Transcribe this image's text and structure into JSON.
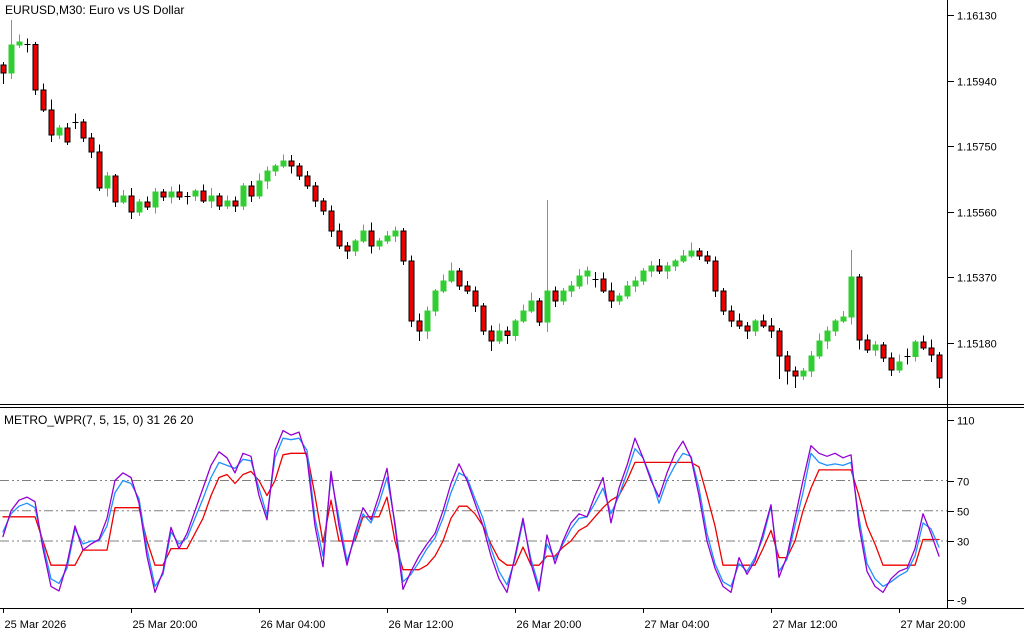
{
  "window": {
    "title_main": "EURUSD,M30:  Euro vs US Dollar",
    "title_indicator": "METRO_WPR(7, 5, 15, 0) 31 26 20"
  },
  "colors": {
    "background": "#FFFFFF",
    "frame": "#000000",
    "text": "#000000",
    "grid": "#808080",
    "bull": "#32CD32",
    "bear": "#EE0000",
    "bear_outline": "#000000",
    "doji": "#000000",
    "wpr_red": "#EE0000",
    "wpr_blue": "#1E90FF",
    "wpr_violet": "#9400D3"
  },
  "price_axis": {
    "labels": [
      "1.16130",
      "1.15940",
      "1.15750",
      "1.15560",
      "1.15370",
      "1.15180"
    ]
  },
  "indicator_axis": {
    "labels": [
      "110",
      "70",
      "50",
      "30",
      "-9"
    ],
    "gridlines": [
      70,
      50,
      30
    ]
  },
  "time_axis": {
    "labels": [
      "25 Mar 2026",
      "25 Mar 20:00",
      "26 Mar 04:00",
      "26 Mar 12:00",
      "26 Mar 20:00",
      "27 Mar 04:00",
      "27 Mar 12:00",
      "27 Mar 20:00"
    ]
  },
  "chart_data": [
    {
      "type": "candlestick",
      "title": "EURUSD,M30: Euro vs US Dollar",
      "symbol": "EURUSD",
      "timeframe": "M30",
      "ylabel": "price",
      "ylim": [
        1.1504,
        1.16175
      ],
      "price_ticks": [
        1.1613,
        1.1594,
        1.1575,
        1.1556,
        1.1537,
        1.1518
      ],
      "time_ticks": [
        "25 Mar 2026",
        "25 Mar 20:00",
        "26 Mar 04:00",
        "26 Mar 12:00",
        "26 Mar 20:00",
        "27 Mar 04:00",
        "27 Mar 12:00",
        "27 Mar 20:00"
      ],
      "candles_ohlc": [
        [
          1.15985,
          1.15994,
          1.1593,
          1.15962
        ],
        [
          1.15962,
          1.16115,
          1.15944,
          1.16043
        ],
        [
          1.16043,
          1.16073,
          1.16034,
          1.16052
        ],
        [
          1.16045,
          1.16062,
          1.16021,
          1.16045
        ],
        [
          1.16045,
          1.16051,
          1.15898,
          1.15913
        ],
        [
          1.15913,
          1.15931,
          1.15849,
          1.15855
        ],
        [
          1.15855,
          1.15885,
          1.15761,
          1.15782
        ],
        [
          1.15782,
          1.15811,
          1.1577,
          1.15802
        ],
        [
          1.15802,
          1.15817,
          1.15753,
          1.15762
        ],
        [
          1.1582,
          1.15845,
          1.158,
          1.1582
        ],
        [
          1.1582,
          1.15829,
          1.15761,
          1.15773
        ],
        [
          1.15773,
          1.15788,
          1.15715,
          1.15733
        ],
        [
          1.15733,
          1.15754,
          1.15619,
          1.15628
        ],
        [
          1.15628,
          1.15675,
          1.15604,
          1.15663
        ],
        [
          1.15663,
          1.15669,
          1.15573,
          1.15588
        ],
        [
          1.15588,
          1.15623,
          1.15582,
          1.15605
        ],
        [
          1.15605,
          1.15629,
          1.15538,
          1.15559
        ],
        [
          1.15559,
          1.15597,
          1.15547,
          1.15588
        ],
        [
          1.15588,
          1.15603,
          1.15564,
          1.15573
        ],
        [
          1.15573,
          1.15629,
          1.15555,
          1.15617
        ],
        [
          1.15617,
          1.15626,
          1.1559,
          1.15602
        ],
        [
          1.15602,
          1.15632,
          1.15584,
          1.15617
        ],
        [
          1.15617,
          1.15638,
          1.15593,
          1.15602
        ],
        [
          1.15605,
          1.15617,
          1.15581,
          1.15605
        ],
        [
          1.15605,
          1.15626,
          1.1559,
          1.1562
        ],
        [
          1.1562,
          1.15638,
          1.15585,
          1.15591
        ],
        [
          1.15591,
          1.15629,
          1.1557,
          1.15605
        ],
        [
          1.15605,
          1.15614,
          1.15564,
          1.15576
        ],
        [
          1.15576,
          1.15606,
          1.15567,
          1.15591
        ],
        [
          1.15591,
          1.15603,
          1.15558,
          1.15576
        ],
        [
          1.15576,
          1.15643,
          1.15564,
          1.15634
        ],
        [
          1.15634,
          1.15649,
          1.15587,
          1.15605
        ],
        [
          1.15605,
          1.1567,
          1.15596,
          1.15649
        ],
        [
          1.15649,
          1.1569,
          1.15625,
          1.15678
        ],
        [
          1.15678,
          1.15698,
          1.15663,
          1.15692
        ],
        [
          1.15692,
          1.15725,
          1.15686,
          1.15707
        ],
        [
          1.15707,
          1.15724,
          1.15671,
          1.15692
        ],
        [
          1.15692,
          1.15701,
          1.15651,
          1.15663
        ],
        [
          1.15663,
          1.15678,
          1.15625,
          1.15634
        ],
        [
          1.15634,
          1.15646,
          1.15573,
          1.15591
        ],
        [
          1.15591,
          1.156,
          1.1555,
          1.15562
        ],
        [
          1.15562,
          1.15577,
          1.15486,
          1.15504
        ],
        [
          1.15504,
          1.15525,
          1.15451,
          1.1546
        ],
        [
          1.1546,
          1.15472,
          1.15422,
          1.15446
        ],
        [
          1.15446,
          1.15481,
          1.15431,
          1.15475
        ],
        [
          1.15475,
          1.15522,
          1.15469,
          1.15504
        ],
        [
          1.15504,
          1.15528,
          1.15439,
          1.1546
        ],
        [
          1.1546,
          1.15484,
          1.15448,
          1.15475
        ],
        [
          1.15475,
          1.15504,
          1.15466,
          1.15489
        ],
        [
          1.15489,
          1.15516,
          1.15471,
          1.15504
        ],
        [
          1.15504,
          1.15513,
          1.15405,
          1.15417
        ],
        [
          1.15417,
          1.15432,
          1.15225,
          1.15243
        ],
        [
          1.15243,
          1.15264,
          1.15185,
          1.15214
        ],
        [
          1.15214,
          1.15284,
          1.1519,
          1.15272
        ],
        [
          1.15272,
          1.15336,
          1.15257,
          1.1533
        ],
        [
          1.1533,
          1.15377,
          1.15324,
          1.15359
        ],
        [
          1.15359,
          1.15412,
          1.15353,
          1.15388
        ],
        [
          1.15388,
          1.15397,
          1.15332,
          1.15344
        ],
        [
          1.15344,
          1.15359,
          1.15321,
          1.1533
        ],
        [
          1.1533,
          1.15342,
          1.15268,
          1.15286
        ],
        [
          1.15286,
          1.15295,
          1.15202,
          1.15214
        ],
        [
          1.15214,
          1.15229,
          1.15156,
          1.15185
        ],
        [
          1.15185,
          1.15235,
          1.15176,
          1.15214
        ],
        [
          1.15214,
          1.15226,
          1.15176,
          1.152
        ],
        [
          1.152,
          1.15249,
          1.15185,
          1.15243
        ],
        [
          1.15243,
          1.1529,
          1.15237,
          1.15272
        ],
        [
          1.15272,
          1.15325,
          1.15266,
          1.15301
        ],
        [
          1.15301,
          1.1531,
          1.15228,
          1.1524
        ],
        [
          1.1524,
          1.15594,
          1.1521,
          1.1533
        ],
        [
          1.1533,
          1.15342,
          1.15283,
          1.15301
        ],
        [
          1.15301,
          1.15339,
          1.15289,
          1.1533
        ],
        [
          1.1533,
          1.15359,
          1.15312,
          1.15344
        ],
        [
          1.15344,
          1.15394,
          1.15335,
          1.15373
        ],
        [
          1.15373,
          1.154,
          1.15349,
          1.15388
        ],
        [
          1.15365,
          1.15385,
          1.1534,
          1.15365
        ],
        [
          1.15365,
          1.15383,
          1.15324,
          1.1533
        ],
        [
          1.1533,
          1.15354,
          1.1528,
          1.15301
        ],
        [
          1.15301,
          1.15324,
          1.15289,
          1.15315
        ],
        [
          1.15315,
          1.15359,
          1.15306,
          1.15344
        ],
        [
          1.15344,
          1.15371,
          1.15326,
          1.15359
        ],
        [
          1.15359,
          1.15397,
          1.15347,
          1.15388
        ],
        [
          1.15388,
          1.15417,
          1.1537,
          1.15402
        ],
        [
          1.15402,
          1.15423,
          1.15379,
          1.15388
        ],
        [
          1.15388,
          1.15414,
          1.15364,
          1.15402
        ],
        [
          1.15402,
          1.15423,
          1.15387,
          1.15417
        ],
        [
          1.15417,
          1.15449,
          1.15411,
          1.15431
        ],
        [
          1.15431,
          1.1547,
          1.15425,
          1.15446
        ],
        [
          1.15446,
          1.15455,
          1.15419,
          1.15431
        ],
        [
          1.15431,
          1.15446,
          1.15408,
          1.15417
        ],
        [
          1.15417,
          1.15429,
          1.15312,
          1.1533
        ],
        [
          1.1533,
          1.15339,
          1.1526,
          1.15272
        ],
        [
          1.15272,
          1.15287,
          1.15225,
          1.15243
        ],
        [
          1.15243,
          1.15264,
          1.15219,
          1.15228
        ],
        [
          1.15228,
          1.1524,
          1.1519,
          1.15214
        ],
        [
          1.15214,
          1.15249,
          1.15199,
          1.15243
        ],
        [
          1.15243,
          1.15261,
          1.15222,
          1.15228
        ],
        [
          1.15228,
          1.15252,
          1.15193,
          1.15214
        ],
        [
          1.15214,
          1.15223,
          1.15075,
          1.15141
        ],
        [
          1.15141,
          1.15156,
          1.15058,
          1.15098
        ],
        [
          1.15098,
          1.1511,
          1.15048,
          1.15083
        ],
        [
          1.15083,
          1.15107,
          1.15071,
          1.15098
        ],
        [
          1.15098,
          1.15156,
          1.1508,
          1.15141
        ],
        [
          1.15141,
          1.15206,
          1.15132,
          1.15185
        ],
        [
          1.15185,
          1.15226,
          1.15161,
          1.15214
        ],
        [
          1.15214,
          1.15249,
          1.15199,
          1.15243
        ],
        [
          1.15243,
          1.15272,
          1.15237,
          1.15254
        ],
        [
          1.15254,
          1.15449,
          1.15233,
          1.1537
        ],
        [
          1.1537,
          1.15379,
          1.1516,
          1.15188
        ],
        [
          1.15188,
          1.15203,
          1.1515,
          1.15159
        ],
        [
          1.15159,
          1.15185,
          1.15141,
          1.15173
        ],
        [
          1.15173,
          1.15182,
          1.15124,
          1.15136
        ],
        [
          1.15136,
          1.15151,
          1.15083,
          1.15101
        ],
        [
          1.15101,
          1.15145,
          1.15092,
          1.15124
        ],
        [
          1.1514,
          1.15163,
          1.15116,
          1.1514
        ],
        [
          1.1514,
          1.15188,
          1.15125,
          1.15182
        ],
        [
          1.15182,
          1.152,
          1.15159,
          1.15165
        ],
        [
          1.15165,
          1.15189,
          1.15123,
          1.15144
        ],
        [
          1.15144,
          1.15153,
          1.15049,
          1.15078
        ]
      ]
    },
    {
      "type": "line",
      "title": "METRO_WPR(7, 5, 15, 0)",
      "current_values": [
        31,
        26,
        20
      ],
      "levels": [
        70,
        50,
        30
      ],
      "axis_ticks": [
        110,
        70,
        50,
        30,
        -9
      ],
      "ylim": [
        -9,
        110
      ],
      "legend_position": "none",
      "grid": "dash-dot horizontal at levels",
      "series": [
        {
          "name": "step-line-red",
          "color": "#EE0000",
          "values": [
            46,
            46,
            46,
            46,
            46,
            30,
            14,
            14,
            14,
            14,
            24,
            24,
            24,
            24,
            52,
            52,
            52,
            52,
            30,
            14,
            14,
            25,
            25,
            25,
            35,
            45,
            60,
            72,
            74,
            68,
            74,
            76,
            70,
            60,
            70,
            87,
            88,
            88,
            88,
            60,
            29,
            57,
            30,
            30,
            30,
            46,
            46,
            46,
            59,
            30,
            11,
            11,
            11,
            14,
            20,
            30,
            45,
            53,
            53,
            48,
            40,
            28,
            18,
            14,
            14,
            26,
            14,
            14,
            20,
            20,
            26,
            30,
            37,
            40,
            46,
            52,
            57,
            60,
            70,
            82,
            82,
            82,
            82,
            82,
            82,
            82,
            82,
            79,
            60,
            40,
            14,
            14,
            14,
            14,
            14,
            25,
            37,
            19,
            19,
            30,
            50,
            65,
            77,
            77,
            77,
            77,
            77,
            60,
            40,
            28,
            14,
            14,
            14,
            14,
            14,
            31,
            31,
            31
          ]
        },
        {
          "name": "wpr-fast-blue",
          "color": "#1E90FF",
          "values": [
            36,
            48,
            53,
            55,
            52,
            28,
            5,
            2,
            12,
            38,
            28,
            30,
            30,
            40,
            62,
            70,
            68,
            58,
            25,
            0,
            8,
            36,
            28,
            32,
            45,
            58,
            72,
            82,
            80,
            78,
            84,
            83,
            65,
            47,
            85,
            98,
            97,
            98,
            90,
            45,
            20,
            73,
            45,
            17,
            32,
            48,
            42,
            55,
            72,
            42,
            3,
            8,
            16,
            25,
            32,
            45,
            62,
            75,
            72,
            58,
            45,
            25,
            10,
            1,
            18,
            43,
            18,
            0,
            28,
            18,
            28,
            38,
            45,
            46,
            55,
            65,
            48,
            60,
            75,
            91,
            85,
            72,
            55,
            70,
            80,
            88,
            86,
            65,
            35,
            15,
            3,
            0,
            15,
            10,
            19,
            32,
            53,
            10,
            18,
            40,
            62,
            88,
            82,
            80,
            81,
            80,
            82,
            45,
            15,
            5,
            0,
            3,
            7,
            10,
            20,
            42,
            38,
            26
          ]
        },
        {
          "name": "wpr-slow-violet",
          "color": "#9400D3",
          "values": [
            33,
            50,
            57,
            59,
            56,
            25,
            0,
            -3,
            15,
            40,
            24,
            28,
            31,
            45,
            70,
            75,
            72,
            55,
            20,
            -4,
            10,
            39,
            25,
            35,
            50,
            65,
            80,
            89,
            85,
            75,
            88,
            86,
            60,
            44,
            90,
            103,
            100,
            102,
            85,
            40,
            13,
            76,
            40,
            14,
            35,
            52,
            44,
            60,
            78,
            40,
            -2,
            10,
            20,
            28,
            35,
            50,
            68,
            81,
            70,
            55,
            40,
            20,
            5,
            -4,
            20,
            45,
            15,
            -3,
            34,
            15,
            30,
            42,
            48,
            46,
            60,
            72,
            42,
            65,
            80,
            98,
            85,
            70,
            59,
            75,
            88,
            96,
            85,
            60,
            30,
            12,
            0,
            -4,
            19,
            8,
            17,
            35,
            54,
            6,
            20,
            45,
            70,
            93,
            88,
            86,
            88,
            85,
            87,
            40,
            10,
            0,
            -4,
            5,
            10,
            12,
            25,
            48,
            35,
            20
          ]
        }
      ]
    }
  ]
}
